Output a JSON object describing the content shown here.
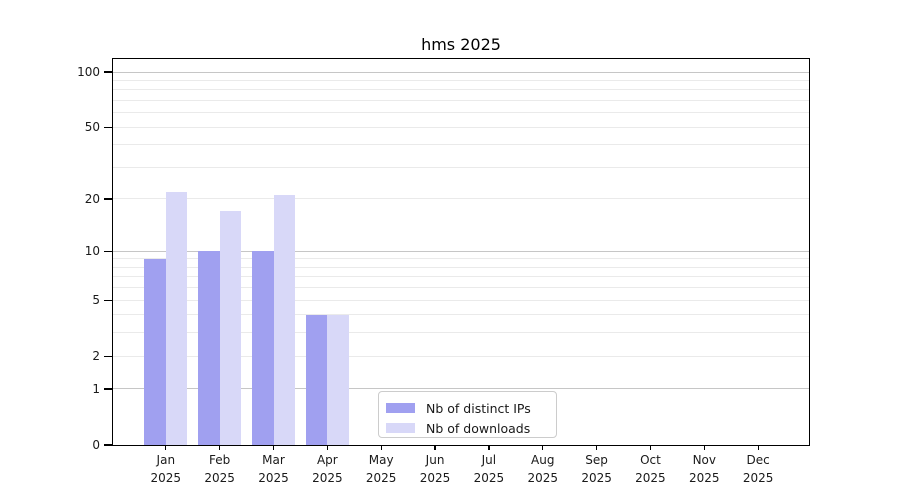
{
  "title": "hms 2025",
  "colors": {
    "bar_ips": "#a0a0f0",
    "bar_downloads": "#d8d8f8",
    "grid_major": "#c6c6c6",
    "grid_minor": "#eaeaea",
    "spine": "#000000",
    "text": "#1a1a1a",
    "legend_border": "#cccccc"
  },
  "legend": {
    "items": [
      {
        "label": "Nb of distinct IPs",
        "color": "#a0a0f0"
      },
      {
        "label": "Nb of downloads",
        "color": "#d8d8f8"
      }
    ]
  },
  "chart_data": {
    "type": "bar",
    "title": "hms 2025",
    "months": [
      "Jan",
      "Feb",
      "Mar",
      "Apr",
      "May",
      "Jun",
      "Jul",
      "Aug",
      "Sep",
      "Oct",
      "Nov",
      "Dec"
    ],
    "year": "2025",
    "categories": [
      "Jan 2025",
      "Feb 2025",
      "Mar 2025",
      "Apr 2025",
      "May 2025",
      "Jun 2025",
      "Jul 2025",
      "Aug 2025",
      "Sep 2025",
      "Oct 2025",
      "Nov 2025",
      "Dec 2025"
    ],
    "series": [
      {
        "name": "Nb of distinct IPs",
        "color": "#a0a0f0",
        "values": [
          9,
          10,
          10,
          4,
          0,
          0,
          0,
          0,
          0,
          0,
          0,
          0
        ]
      },
      {
        "name": "Nb of downloads",
        "color": "#d8d8f8",
        "values": [
          22,
          17,
          21,
          4,
          0,
          0,
          0,
          0,
          0,
          0,
          0,
          0
        ]
      }
    ],
    "y_axis": {
      "scale": "log1p",
      "tick_values": [
        0,
        1,
        2,
        5,
        10,
        20,
        50,
        100
      ],
      "major_gridlines": [
        1,
        10,
        100
      ],
      "minor_gridlines": [
        2,
        3,
        4,
        5,
        6,
        7,
        8,
        9,
        20,
        30,
        40,
        50,
        60,
        70,
        80,
        90
      ],
      "ylim": [
        0,
        100
      ]
    },
    "xlabel": "",
    "ylabel": "",
    "grid": true,
    "legend_position": "lower center"
  }
}
